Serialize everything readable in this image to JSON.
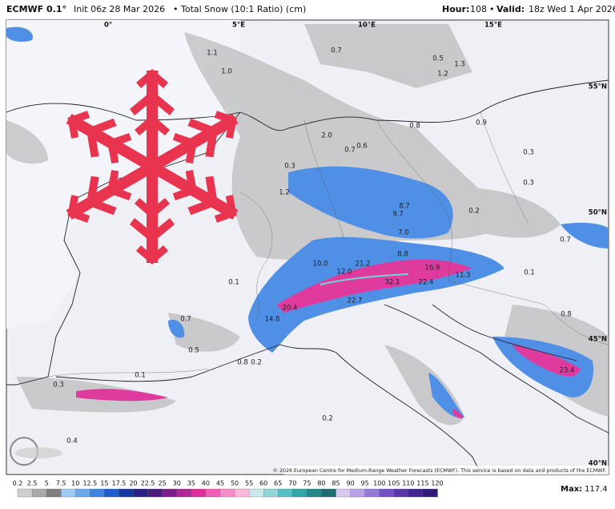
{
  "header": {
    "model": "ECMWF 0.1°",
    "init": "Init 06z 28 Mar 2026",
    "product": "Total Snow (10:1 Ratio) (cm)",
    "hour_label": "Hour:",
    "hour": "108",
    "valid_label": "Valid:",
    "valid": "18z Wed 1 Apr 2026"
  },
  "map": {
    "lon_labels": [
      "0°",
      "5°E",
      "10°E",
      "15°E"
    ],
    "lat_labels": [
      "55°N",
      "50°N",
      "45°N",
      "40°N"
    ],
    "snow_labels": [
      "1.1",
      "1.0",
      "0.7",
      "0.5",
      "1.3",
      "1.2",
      "0.9",
      "0.3",
      "0.8",
      "2.0",
      "0.7",
      "0.6",
      "0.3",
      "1.2",
      "8.7",
      "9.7",
      "7.0",
      "0.2",
      "10.0",
      "21.2",
      "8.8",
      "12.0",
      "16.9",
      "11.3",
      "32.1",
      "22.4",
      "20.4",
      "22.7",
      "14.8",
      "0.1",
      "0.1",
      "0.3",
      "0.5",
      "0.7",
      "0.8",
      "0.2",
      "0.4",
      "0.2",
      "0.1",
      "0.8",
      "23.4",
      "0.7",
      "0.3"
    ],
    "credit": "© 2026 European Centre for Medium-Range Weather Forecasts (ECMWF). This service is based on data and products of the ECMWF."
  },
  "legend": {
    "ticks": [
      0.2,
      2.5,
      5,
      7.5,
      10,
      12.5,
      15,
      17.5,
      20,
      22.5,
      25,
      30,
      35,
      40,
      45,
      50,
      55,
      60,
      65,
      70,
      75,
      80,
      85,
      90,
      95,
      100,
      105,
      110,
      115,
      120
    ],
    "colors": [
      "#cfcfcf",
      "#a9a9a9",
      "#7f7f7f",
      "#9ec9f5",
      "#6aa7ef",
      "#3b86e4",
      "#1d5fcf",
      "#1438a8",
      "#2a1f86",
      "#4a1a7e",
      "#7c1f8a",
      "#b42596",
      "#dd2f9c",
      "#ef5db6",
      "#f68cca",
      "#f9b9dd",
      "#c8e8ea",
      "#8fd6d8",
      "#56c1c4",
      "#2ea6aa",
      "#24888c",
      "#1e6d70",
      "#d8c8f0",
      "#b7a0e6",
      "#9678d9",
      "#7450c8",
      "#5a36ad",
      "#432592",
      "#2f1a78"
    ],
    "max_label": "Max:",
    "max": 117.4
  }
}
